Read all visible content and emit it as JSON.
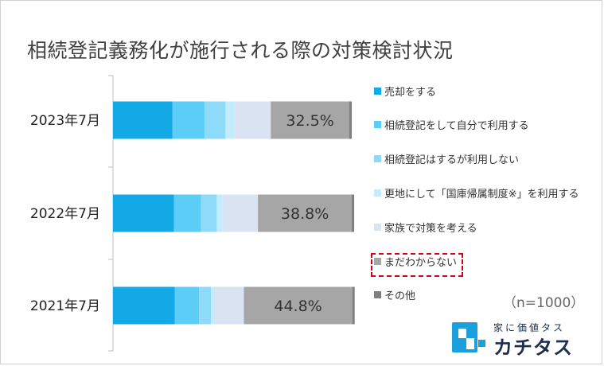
{
  "title": "相続登記義務化が施行される際の対策検討状況",
  "note": "（n=1000）",
  "logo": {
    "tagline": "家に価値タス",
    "name": "カチタス"
  },
  "chart_data": {
    "type": "bar",
    "orientation": "horizontal",
    "stacked": true,
    "percent_stacked": true,
    "title": "相続登記義務化が施行される際の対策検討状況",
    "categories": [
      "2023年7月",
      "2022年7月",
      "2021年7月"
    ],
    "series": [
      {
        "name": "売却をする",
        "color": "#12a9e6",
        "values": [
          24.6,
          25.2,
          25.5
        ]
      },
      {
        "name": "相続登記をして自分で利用する",
        "color": "#5ccdf7",
        "values": [
          13.3,
          11.2,
          10.1
        ]
      },
      {
        "name": "相続登記はするが利用しない",
        "color": "#8ddbf8",
        "values": [
          8.6,
          6.5,
          4.9
        ]
      },
      {
        "name": "更地にして「国庫帰属制度※」を利用する",
        "color": "#c2ecfb",
        "values": [
          3.7,
          2.4,
          1.6
        ]
      },
      {
        "name": "家族で対策を考える",
        "color": "#dae3f2",
        "values": [
          15.0,
          14.6,
          12.0
        ]
      },
      {
        "name": "まだわからない",
        "color": "#a6a6a6",
        "values": [
          32.5,
          38.8,
          44.8
        ]
      },
      {
        "name": "その他",
        "color": "#7f7f7f",
        "values": [
          1.0,
          1.0,
          1.0
        ]
      }
    ],
    "data_labels": {
      "series": "まだわからない",
      "values": [
        "32.5%",
        "38.8%",
        "44.8%"
      ]
    },
    "xlim": [
      0,
      100
    ],
    "legend": "right",
    "grid": false,
    "highlighted_series": "まだわからない"
  }
}
